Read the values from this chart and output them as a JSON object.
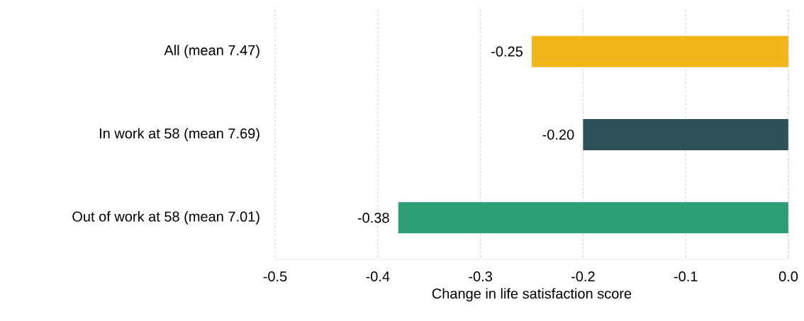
{
  "chart_data": {
    "type": "bar",
    "orientation": "horizontal",
    "xlabel": "Change in life satisfaction score",
    "categories": [
      "All (mean 7.47)",
      "In work at 58 (mean 7.69)",
      "Out of work at 58 (mean 7.01)"
    ],
    "values": [
      -0.25,
      -0.2,
      -0.38
    ],
    "colors": [
      "#f2b61b",
      "#305057",
      "#2e9e74"
    ],
    "value_labels": [
      "-0.25",
      "-0.20",
      "-0.38"
    ],
    "xlim": [
      -0.5,
      0
    ],
    "xticks": [
      {
        "value": -0.5,
        "label": "-0.5"
      },
      {
        "value": -0.4,
        "label": "-0.4"
      },
      {
        "value": -0.3,
        "label": "-0.3"
      },
      {
        "value": -0.2,
        "label": "-0.2"
      },
      {
        "value": -0.1,
        "label": "-0.1"
      },
      {
        "value": 0,
        "label": "0.0"
      }
    ],
    "grid": "x"
  }
}
